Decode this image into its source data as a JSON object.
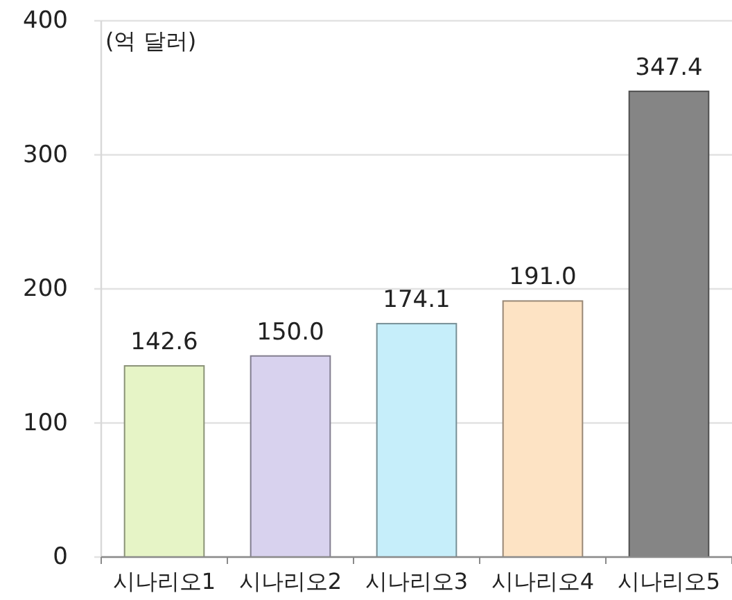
{
  "chart_data": {
    "type": "bar",
    "ylabel": "(억 달러)",
    "categories": [
      "시나리오1",
      "시나리오2",
      "시나리오3",
      "시나리오4",
      "시나리오5"
    ],
    "values": [
      142.6,
      150.0,
      174.1,
      191.0,
      347.4
    ],
    "value_labels": [
      "142.6",
      "150.0",
      "174.1",
      "191.0",
      "347.4"
    ],
    "colors": [
      "#e6f4c6",
      "#d8d2ee",
      "#c6eefa",
      "#fde3c4",
      "#858585"
    ],
    "ylim": [
      0,
      400
    ],
    "yticks": [
      0,
      100,
      200,
      300,
      400
    ],
    "grid": "y"
  }
}
